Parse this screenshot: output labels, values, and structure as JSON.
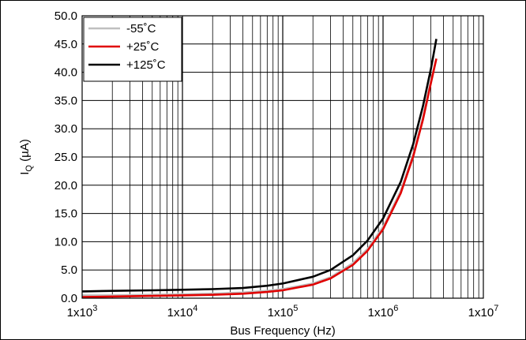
{
  "chart_data": {
    "type": "line",
    "xlabel": "Bus Frequency (Hz)",
    "ylabel": {
      "main": "I",
      "sub": "Q",
      "unit": " (µA)"
    },
    "x_scale": "log",
    "xlim": [
      1000,
      10000000
    ],
    "ylim": [
      0,
      50
    ],
    "grid": true,
    "legend_position": "top-left",
    "x_ticks": [
      {
        "mantissa": "1x10",
        "exp": "3"
      },
      {
        "mantissa": "1x10",
        "exp": "4"
      },
      {
        "mantissa": "1x10",
        "exp": "5"
      },
      {
        "mantissa": "1x10",
        "exp": "6"
      },
      {
        "mantissa": "1x10",
        "exp": "7"
      }
    ],
    "y_ticks": [
      "0.0",
      "5.0",
      "10.0",
      "15.0",
      "20.0",
      "25.0",
      "30.0",
      "35.0",
      "40.0",
      "45.0",
      "50.0"
    ],
    "x": [
      1000,
      2000,
      5000,
      10000,
      20000,
      40000,
      70000,
      100000,
      200000,
      300000,
      500000,
      700000,
      1000000,
      1500000,
      2000000,
      2500000,
      3000000,
      3400000
    ],
    "series": [
      {
        "name": "-55˚C",
        "color": "#bfbfbf",
        "values": [
          0.5,
          0.5,
          0.6,
          0.7,
          0.8,
          1.0,
          1.3,
          1.6,
          2.6,
          3.7,
          6.2,
          8.7,
          12.6,
          19.0,
          25.5,
          32.0,
          38.5,
          42.4
        ]
      },
      {
        "name": "+25˚C",
        "color": "#e00000",
        "values": [
          0.2,
          0.3,
          0.4,
          0.5,
          0.6,
          0.8,
          1.1,
          1.4,
          2.4,
          3.5,
          5.9,
          8.4,
          12.2,
          18.6,
          25.1,
          31.6,
          38.1,
          42.4
        ]
      },
      {
        "name": "+125˚C",
        "color": "#000000",
        "values": [
          1.2,
          1.3,
          1.4,
          1.5,
          1.6,
          1.8,
          2.2,
          2.6,
          3.8,
          5.0,
          7.6,
          10.2,
          14.1,
          20.6,
          27.3,
          34.0,
          40.6,
          45.9
        ]
      }
    ]
  }
}
